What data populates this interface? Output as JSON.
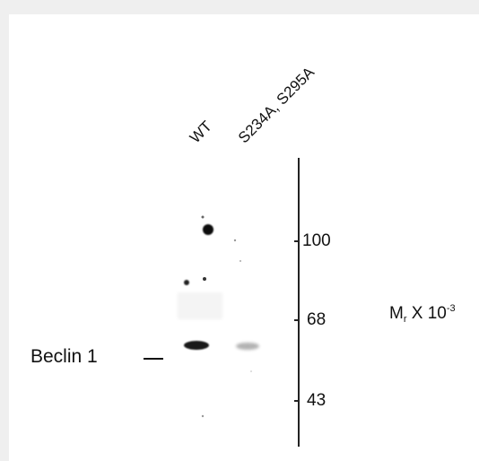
{
  "lanes": [
    "WT",
    "S234A, S295A"
  ],
  "protein": "Beclin 1",
  "mr_axis": {
    "base": "M",
    "subscript": "r",
    "middle": " X 10",
    "superscript": "-3"
  },
  "markers": [
    "100",
    "68",
    "43"
  ],
  "band_intensity": {
    "WT": 0.95,
    "S234A, S295A": 0.3
  }
}
